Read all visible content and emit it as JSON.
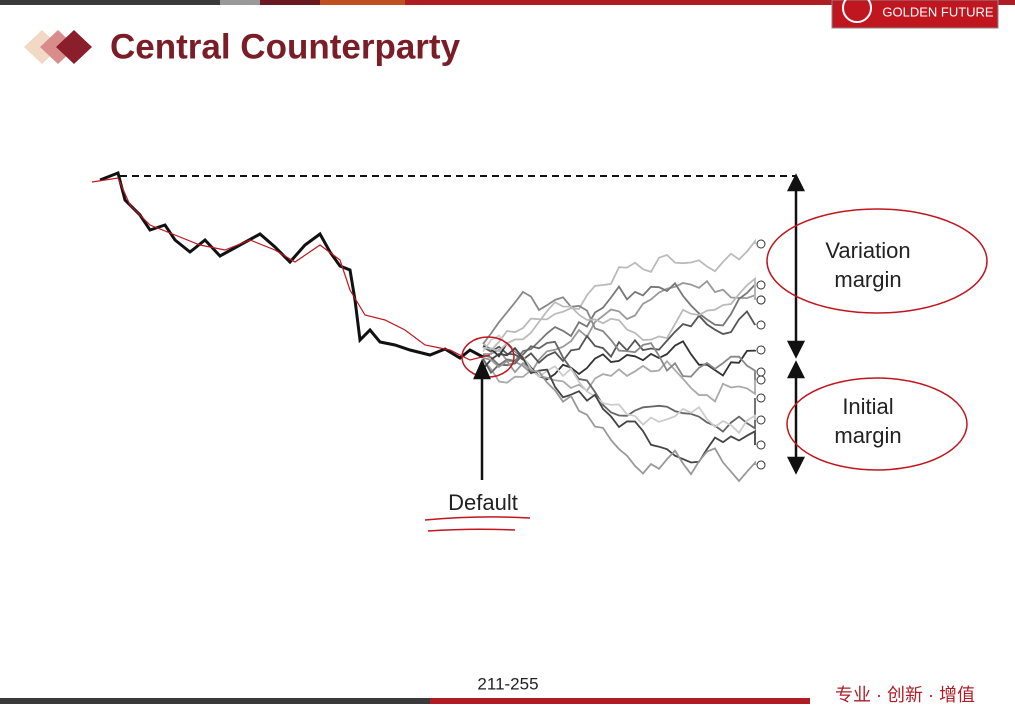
{
  "header": {
    "title": "Central Counterparty",
    "logo_text": "GOLDEN FUTURE"
  },
  "diagram": {
    "variation_margin": [
      "Variation",
      "margin"
    ],
    "initial_margin": [
      "Initial",
      "margin"
    ],
    "default_label": "Default"
  },
  "footer": {
    "page": "211-255",
    "slogan": "专业 · 创新 · 增值"
  }
}
